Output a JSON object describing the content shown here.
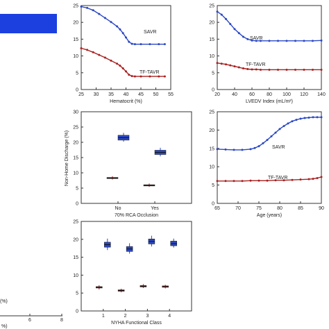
{
  "colors": {
    "savr": "#2a47c4",
    "tavr": "#a8201f",
    "legend_block": "#1c3fe0",
    "axis": "#333333"
  },
  "left_fragment": {
    "xticks": [
      "6",
      "8"
    ],
    "axis_label_fragment": "(%)",
    "corner_label": "%)"
  },
  "chart_data": [
    {
      "id": "hematocrit",
      "type": "line",
      "xlabel": "Hematocrit (%)",
      "ylabel": "",
      "xlim": [
        25,
        55
      ],
      "ylim": [
        0,
        25
      ],
      "xticks": [
        25,
        30,
        35,
        40,
        45,
        50,
        55
      ],
      "yticks": [
        0,
        5,
        10,
        15,
        20,
        25
      ],
      "series": [
        {
          "name": "SAVR",
          "color": "#2a47c4",
          "x": [
            25,
            27,
            29,
            31,
            33,
            35,
            37,
            38,
            39,
            40,
            41,
            42,
            43,
            45,
            48,
            51,
            53
          ],
          "y": [
            24.7,
            24.3,
            23.6,
            22.5,
            21.3,
            20.1,
            18.8,
            17.9,
            16.8,
            15.5,
            14.2,
            13.6,
            13.5,
            13.5,
            13.5,
            13.5,
            13.5
          ]
        },
        {
          "name": "TF-TAVR",
          "color": "#a8201f",
          "x": [
            25,
            27,
            29,
            31,
            33,
            35,
            37,
            38,
            39,
            40,
            41,
            42,
            43,
            45,
            48,
            51,
            53
          ],
          "y": [
            12.3,
            11.8,
            11.1,
            10.3,
            9.5,
            8.6,
            7.7,
            7.1,
            6.3,
            5.4,
            4.4,
            4.0,
            3.9,
            3.9,
            3.9,
            3.9,
            3.9
          ]
        }
      ]
    },
    {
      "id": "lvedv",
      "type": "line",
      "xlabel": "LVEDV Index (mL/m²)",
      "ylabel": "",
      "xlim": [
        20,
        140
      ],
      "ylim": [
        0,
        25
      ],
      "xticks": [
        20,
        40,
        60,
        80,
        100,
        120,
        140
      ],
      "yticks": [
        0,
        5,
        10,
        15,
        20,
        25
      ],
      "series": [
        {
          "name": "SAVR",
          "color": "#2a47c4",
          "x": [
            20,
            25,
            30,
            35,
            40,
            45,
            50,
            55,
            60,
            65,
            70,
            80,
            90,
            100,
            110,
            120,
            130,
            140
          ],
          "y": [
            23.2,
            22.3,
            21.0,
            19.5,
            18.0,
            16.8,
            15.7,
            15.0,
            14.6,
            14.5,
            14.5,
            14.5,
            14.5,
            14.5,
            14.5,
            14.5,
            14.5,
            14.6
          ]
        },
        {
          "name": "TF-TAVR",
          "color": "#a8201f",
          "x": [
            20,
            25,
            30,
            35,
            40,
            45,
            50,
            55,
            60,
            65,
            70,
            80,
            90,
            100,
            110,
            120,
            130,
            140
          ],
          "y": [
            7.9,
            7.7,
            7.5,
            7.2,
            6.9,
            6.6,
            6.3,
            6.1,
            6.0,
            6.0,
            5.9,
            5.9,
            5.9,
            5.9,
            5.9,
            5.9,
            5.9,
            5.9
          ]
        }
      ]
    },
    {
      "id": "rca",
      "type": "box",
      "xlabel": "70% RCA Occlusion",
      "ylabel": "Non-Home Discharge (%)",
      "categories": [
        "No",
        "Yes"
      ],
      "ylim": [
        0,
        30
      ],
      "yticks": [
        0,
        5,
        10,
        15,
        20,
        25,
        30
      ],
      "series": [
        {
          "name": "SAVR",
          "color": "#2a47c4",
          "boxes": [
            {
              "median": 21.5,
              "q1": 20.7,
              "q3": 22.3,
              "whislo": 20.2,
              "whishi": 23.1
            },
            {
              "median": 16.7,
              "q1": 16.0,
              "q3": 17.4,
              "whislo": 15.4,
              "whishi": 18.2
            }
          ]
        },
        {
          "name": "TF-TAVR",
          "color": "#a8201f",
          "boxes": [
            {
              "median": 8.3,
              "q1": 8.1,
              "q3": 8.5,
              "whislo": 7.8,
              "whishi": 8.9
            },
            {
              "median": 5.9,
              "q1": 5.7,
              "q3": 6.1,
              "whislo": 5.4,
              "whishi": 6.5
            }
          ]
        }
      ]
    },
    {
      "id": "age",
      "type": "line",
      "xlabel": "Age (years)",
      "ylabel": "",
      "xlim": [
        65,
        90
      ],
      "ylim": [
        0,
        25
      ],
      "xticks": [
        65,
        70,
        75,
        80,
        85,
        90
      ],
      "yticks": [
        0,
        5,
        10,
        15,
        20,
        25
      ],
      "series": [
        {
          "name": "SAVR",
          "color": "#2a47c4",
          "x": [
            65,
            67,
            69,
            71,
            73,
            74,
            75,
            76,
            77,
            78,
            79,
            80,
            81,
            82,
            83,
            84,
            85,
            86,
            87,
            88,
            89,
            90
          ],
          "y": [
            14.8,
            14.7,
            14.6,
            14.6,
            14.8,
            15.1,
            15.6,
            16.4,
            17.3,
            18.3,
            19.3,
            20.3,
            21.1,
            21.8,
            22.4,
            22.8,
            23.1,
            23.3,
            23.4,
            23.5,
            23.5,
            23.5
          ]
        },
        {
          "name": "TF-TAVR",
          "color": "#a8201f",
          "x": [
            65,
            67,
            69,
            71,
            73,
            75,
            77,
            79,
            81,
            83,
            85,
            87,
            88,
            89,
            90
          ],
          "y": [
            6.1,
            6.1,
            6.1,
            6.1,
            6.2,
            6.2,
            6.2,
            6.3,
            6.3,
            6.4,
            6.5,
            6.6,
            6.7,
            6.9,
            7.2
          ]
        }
      ]
    },
    {
      "id": "nyha",
      "type": "box",
      "xlabel": "NYHA Functional Class",
      "ylabel": "",
      "categories": [
        "1",
        "2",
        "3",
        "4"
      ],
      "ylim": [
        0,
        25
      ],
      "yticks": [
        0,
        5,
        10,
        15,
        20,
        25
      ],
      "series": [
        {
          "name": "SAVR",
          "color": "#2a47c4",
          "boxes": [
            {
              "median": 18.5,
              "q1": 17.8,
              "q3": 19.2,
              "whislo": 17.0,
              "whishi": 20.2
            },
            {
              "median": 17.3,
              "q1": 16.6,
              "q3": 18.0,
              "whislo": 16.0,
              "whishi": 18.9
            },
            {
              "median": 19.4,
              "q1": 18.7,
              "q3": 20.1,
              "whislo": 18.0,
              "whishi": 21.0
            },
            {
              "median": 18.8,
              "q1": 18.2,
              "q3": 19.5,
              "whislo": 17.7,
              "whishi": 20.2
            }
          ]
        },
        {
          "name": "TF-TAVR",
          "color": "#a8201f",
          "boxes": [
            {
              "median": 6.6,
              "q1": 6.4,
              "q3": 6.8,
              "whislo": 6.0,
              "whishi": 7.2
            },
            {
              "median": 5.7,
              "q1": 5.5,
              "q3": 5.9,
              "whislo": 5.2,
              "whishi": 6.2
            },
            {
              "median": 6.9,
              "q1": 6.7,
              "q3": 7.1,
              "whislo": 6.4,
              "whishi": 7.5
            },
            {
              "median": 6.8,
              "q1": 6.6,
              "q3": 7.0,
              "whislo": 6.3,
              "whishi": 7.3
            }
          ]
        }
      ]
    }
  ]
}
